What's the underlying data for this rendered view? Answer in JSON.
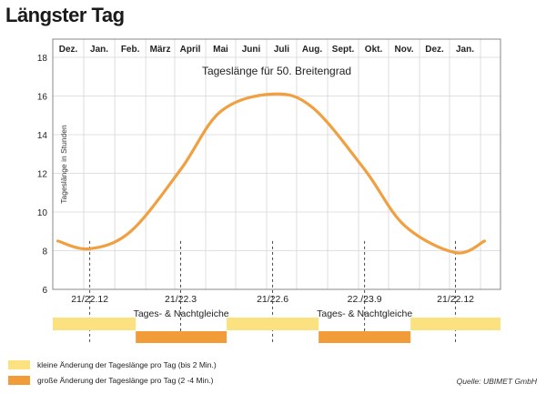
{
  "title": "Längster Tag",
  "chart_data": {
    "type": "line",
    "annotation": "Tageslänge für 50. Breitengrad",
    "ylabel": "Tageslänge in Stunden",
    "ylim": [
      6,
      18
    ],
    "yticks": [
      6,
      8,
      10,
      12,
      14,
      16,
      18
    ],
    "grid": true,
    "months": [
      "Dez.",
      "Jan.",
      "Feb.",
      "März",
      "April",
      "Mai",
      "Juni",
      "Juli",
      "Aug.",
      "Sept.",
      "Okt.",
      "Nov.",
      "Dez.",
      "Jan."
    ],
    "series": [
      {
        "x": [
          "2011-11-20",
          "2011-12-22",
          "2012-02-01",
          "2012-03-22",
          "2012-05-01",
          "2012-06-22",
          "2012-08-01",
          "2012-09-22",
          "2012-11-01",
          "2012-12-22",
          "2013-01-20"
        ],
        "values": [
          8.5,
          8.1,
          9.0,
          12.2,
          15.2,
          16.1,
          15.4,
          12.2,
          9.3,
          7.9,
          8.5
        ]
      }
    ],
    "markers": [
      {
        "label": "21/22.12",
        "x": "2011-12-22"
      },
      {
        "label": "21/22.3",
        "x": "2012-03-22"
      },
      {
        "label": "21/22.6",
        "x": "2012-06-22"
      },
      {
        "label": "22./23.9",
        "x": "2012-09-22"
      },
      {
        "label": "21/22.12",
        "x": "2012-12-22"
      }
    ],
    "phase_bars": [
      {
        "kind": "small",
        "from": "2011-11-15",
        "to": "2012-02-06",
        "label": ""
      },
      {
        "kind": "large",
        "from": "2012-02-06",
        "to": "2012-05-07",
        "label": "Tages- & Nachtgleiche"
      },
      {
        "kind": "small",
        "from": "2012-05-07",
        "to": "2012-08-07",
        "label": ""
      },
      {
        "kind": "large",
        "from": "2012-08-07",
        "to": "2012-11-07",
        "label": "Tages- & Nachtgleiche"
      },
      {
        "kind": "small",
        "from": "2012-11-07",
        "to": "2013-02-05",
        "label": ""
      }
    ]
  },
  "legend": [
    {
      "kind": "small",
      "label": "kleine Änderung der Tageslänge pro Tag (bis 2 Min.)",
      "color": "#fbe17f"
    },
    {
      "kind": "large",
      "label": "große Änderung der Tageslänge pro Tag (2 -4 Min.)",
      "color": "#f29b39"
    }
  ],
  "source": "Quelle: UBIMET GmbH",
  "colors": {
    "curve": "#f0a040",
    "small": "#fbe17f",
    "large": "#f29b39",
    "grid": "#d6d6d6"
  }
}
